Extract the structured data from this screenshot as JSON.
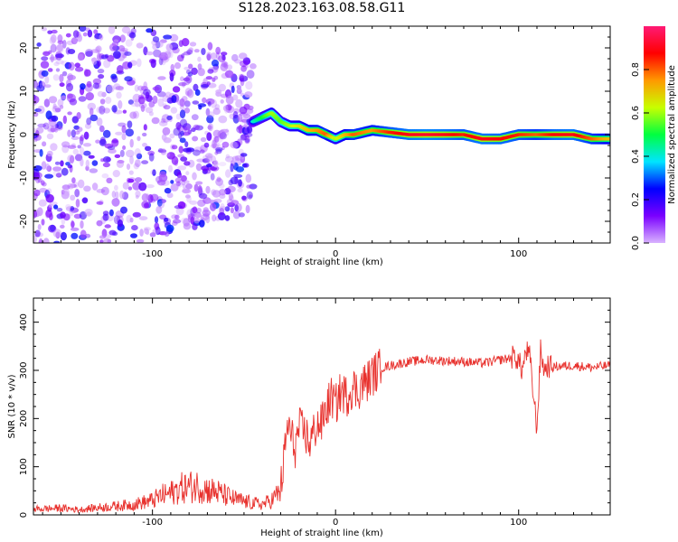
{
  "figure_title": "S128.2023.163.08.58.G11",
  "colorbar": {
    "label": "Normalized spectral amplitude",
    "ticks": [
      "0.0",
      "0.2",
      "0.4",
      "0.6",
      "0.8"
    ],
    "colormap": [
      "#d9b3ff",
      "#7a00ff",
      "#0000ff",
      "#00e5ff",
      "#00ff40",
      "#c8ff00",
      "#ff9900",
      "#ff0000",
      "#ff1a75"
    ]
  },
  "chart_data": [
    {
      "type": "heatmap",
      "title": "",
      "xlabel": "Height of straight line (km)",
      "ylabel": "Frequency (Hz)",
      "xlim": [
        -165,
        150
      ],
      "ylim": [
        -25,
        25
      ],
      "xticks": [
        "-100",
        "0",
        "100"
      ],
      "yticks": [
        "-20",
        "-10",
        "0",
        "10",
        "20"
      ],
      "ridge": {
        "description": "dominant frequency ridge (value 0-1 normalized amplitude)",
        "x": [
          -45,
          -40,
          -35,
          -30,
          -25,
          -20,
          -15,
          -10,
          -5,
          0,
          5,
          10,
          20,
          30,
          40,
          50,
          60,
          70,
          80,
          90,
          100,
          110,
          120,
          130,
          140,
          150
        ],
        "freq": [
          3,
          4,
          5,
          3,
          2,
          2,
          1,
          1,
          0,
          -1,
          0,
          0,
          1,
          0.5,
          0,
          0,
          0,
          0,
          -1,
          -1,
          0,
          0,
          0,
          0,
          -1,
          -1
        ],
        "amplitude": [
          0.4,
          0.5,
          0.6,
          0.55,
          0.6,
          0.65,
          0.7,
          0.75,
          0.8,
          0.6,
          0.7,
          0.8,
          0.75,
          0.85,
          0.9,
          0.92,
          0.9,
          0.85,
          0.9,
          0.88,
          0.85,
          0.8,
          0.88,
          0.9,
          0.8,
          0.7
        ]
      },
      "noise_region": {
        "description": "scattered low-amplitude speckle for heights below about -45 km",
        "x_range": [
          -165,
          -45
        ],
        "freq_range": [
          -25,
          25
        ],
        "amplitude_range": [
          0.0,
          0.3
        ]
      }
    },
    {
      "type": "line",
      "title": "",
      "xlabel": "Height of straight line (km)",
      "ylabel": "SNR (10 * v/v)",
      "xlim": [
        -165,
        150
      ],
      "ylim": [
        0,
        450
      ],
      "xticks": [
        "-100",
        "0",
        "100"
      ],
      "yticks": [
        "0",
        "100",
        "200",
        "300",
        "400"
      ],
      "series": [
        {
          "color": "#e8312d",
          "x": [
            -165,
            -150,
            -140,
            -130,
            -120,
            -110,
            -100,
            -95,
            -90,
            -85,
            -80,
            -75,
            -70,
            -65,
            -60,
            -55,
            -50,
            -45,
            -40,
            -35,
            -30,
            -28,
            -26,
            -24,
            -22,
            -20,
            -18,
            -16,
            -14,
            -12,
            -10,
            -8,
            -6,
            -4,
            -2,
            0,
            2,
            4,
            6,
            8,
            10,
            12,
            14,
            16,
            18,
            20,
            25,
            30,
            40,
            50,
            60,
            70,
            80,
            85,
            90,
            95,
            98,
            100,
            102,
            104,
            106,
            108,
            110,
            112,
            114,
            116,
            118,
            120,
            130,
            140,
            150
          ],
          "y": [
            12,
            14,
            11,
            15,
            18,
            22,
            30,
            40,
            45,
            55,
            58,
            60,
            52,
            48,
            40,
            32,
            28,
            24,
            22,
            30,
            50,
            120,
            190,
            160,
            140,
            180,
            175,
            165,
            150,
            170,
            190,
            185,
            210,
            230,
            245,
            225,
            250,
            255,
            245,
            260,
            265,
            255,
            270,
            275,
            280,
            290,
            305,
            310,
            318,
            322,
            320,
            318,
            315,
            318,
            322,
            325,
            330,
            318,
            300,
            340,
            330,
            250,
            180,
            340,
            300,
            310,
            305,
            308,
            310,
            306,
            310
          ]
        }
      ]
    }
  ]
}
